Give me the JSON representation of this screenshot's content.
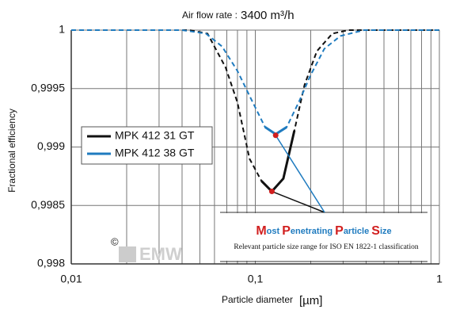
{
  "chart_data": {
    "type": "line",
    "title": "Air flow rate :",
    "flow_rate": "3400 m³/h",
    "x_label": "Particle diameter",
    "x_unit": "[µm]",
    "y_label": "Fractional efficiency",
    "log_x": true,
    "grid": true,
    "xlim": [
      0.01,
      1
    ],
    "xticks": [
      {
        "value": 0.01,
        "label": "0,01"
      },
      {
        "value": 0.1,
        "label": "0,1"
      },
      1
    ],
    "ylim": [
      0.998,
      1
    ],
    "yticks": [
      {
        "value": 0.998,
        "label": "0,998"
      },
      {
        "value": 0.9985,
        "label": "0,9985"
      },
      {
        "value": 0.999,
        "label": "0,999"
      },
      {
        "value": 0.9995,
        "label": "0,9995"
      },
      1
    ],
    "solid_range": [
      0.1,
      0.165
    ],
    "series": [
      {
        "name": "MPK 412 31 GT",
        "color": "#111111",
        "x": [
          0.01,
          0.044,
          0.055,
          0.069,
          0.08,
          0.093,
          0.108,
          0.123,
          0.142,
          0.163,
          0.185,
          0.216,
          0.262,
          0.32,
          1
        ],
        "values": [
          1,
          1,
          0.99997,
          0.99968,
          0.99938,
          0.9989,
          0.99871,
          0.99862,
          0.99873,
          0.99914,
          0.99953,
          0.99982,
          0.99997,
          1,
          1
        ],
        "minimum": {
          "x": 0.123,
          "value": 0.99862
        }
      },
      {
        "name": "MPK 412 38 GT",
        "color": "#1f7bbf",
        "x": [
          0.01,
          0.04,
          0.054,
          0.066,
          0.08,
          0.097,
          0.113,
          0.129,
          0.148,
          0.173,
          0.199,
          0.237,
          0.29,
          0.39,
          1
        ],
        "values": [
          1,
          1,
          0.99997,
          0.99986,
          0.99965,
          0.99938,
          0.99917,
          0.99911,
          0.99917,
          0.99939,
          0.99961,
          0.99984,
          0.99995,
          1,
          1
        ],
        "minimum": {
          "x": 0.129,
          "value": 0.9991
        }
      }
    ],
    "annotation_title": "Most Penetrating Particle Size",
    "annotation_text": "Relevant particle size range for ISO EN 1822-1 classification",
    "copyright": "©",
    "watermark": "EMW"
  }
}
